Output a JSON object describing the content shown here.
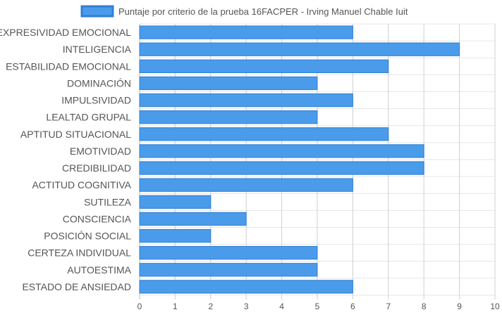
{
  "chart_data": {
    "type": "bar",
    "orientation": "horizontal",
    "categories": [
      "EXPRESIVIDAD EMOCIONAL",
      "INTELIGENCIA",
      "ESTABILIDAD EMOCIONAL",
      "DOMINACIÓN",
      "IMPULSIVIDAD",
      "LEALTAD GRUPAL",
      "APTITUD SITUACIONAL",
      "EMOTIVIDAD",
      "CREDIBILIDAD",
      "ACTITUD COGNITIVA",
      "SUTILEZA",
      "CONSCIENCIA",
      "POSICIÓN SOCIAL",
      "CERTEZA INDIVIDUAL",
      "AUTOESTIMA",
      "ESTADO DE ANSIEDAD"
    ],
    "series": [
      {
        "name": "Puntaje por criterio de la prueba 16FACPER - Irving Manuel Chable Iuit",
        "values": [
          6,
          9,
          7,
          5,
          6,
          5,
          7,
          8,
          8,
          6,
          2,
          3,
          2,
          5,
          5,
          6
        ],
        "color": "#4a9be9",
        "border_color": "#2f7fd6"
      }
    ],
    "xlim": [
      0,
      10
    ],
    "x_ticks": [
      "0",
      "1",
      "2",
      "3",
      "4",
      "5",
      "6",
      "7",
      "8",
      "9",
      "10"
    ],
    "title": "",
    "xlabel": "",
    "ylabel": "",
    "grid": true,
    "legend_position": "top"
  }
}
